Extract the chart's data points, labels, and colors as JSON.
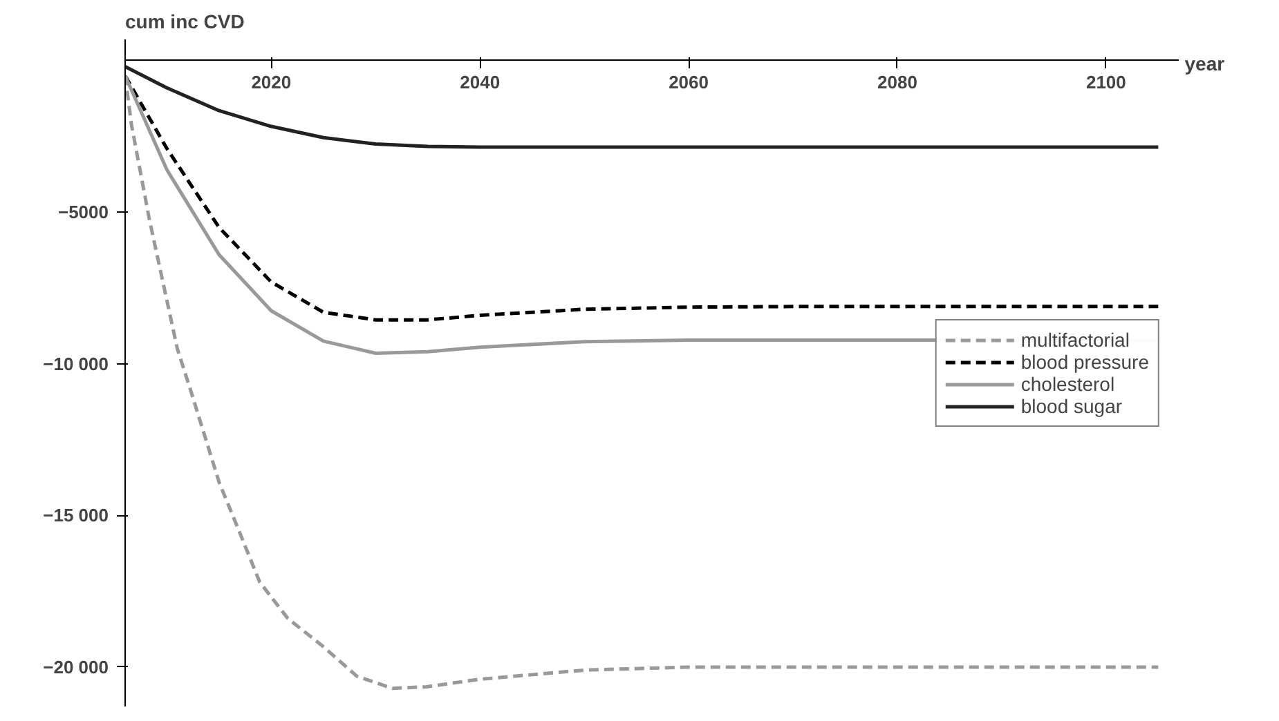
{
  "chart_data": {
    "type": "line",
    "xlabel": "year",
    "ylabel": "cum inc CVD",
    "xlim": [
      2006,
      2107
    ],
    "ylim": [
      -21300,
      700
    ],
    "xticks": [
      2020,
      2040,
      2060,
      2080,
      2100
    ],
    "yticks": [
      {
        "value": -5000,
        "label": "−5000"
      },
      {
        "value": -10000,
        "label": "−10 000"
      },
      {
        "value": -15000,
        "label": "−15 000"
      },
      {
        "value": -20000,
        "label": "−20 000"
      }
    ],
    "grid": false,
    "legend": "right",
    "series": [
      {
        "name": "multifactorial",
        "color": "#999999",
        "line_style": "dashed",
        "x": [
          2006,
          2006.6,
          2008.3,
          2011,
          2012.3,
          2015,
          2016.9,
          2018.9,
          2021.6,
          2024.9,
          2028.2,
          2031.6,
          2034.9,
          2040,
          2050,
          2060,
          2080,
          2105
        ],
        "values": [
          -500,
          -2100,
          -5200,
          -9500,
          -10900,
          -13900,
          -15500,
          -17200,
          -18400,
          -19300,
          -20300,
          -20700,
          -20650,
          -20400,
          -20100,
          -20000,
          -20000,
          -20000
        ]
      },
      {
        "name": "blood pressure",
        "color": "#000000",
        "line_style": "dashed",
        "x": [
          2006,
          2010,
          2015,
          2020,
          2025,
          2030,
          2035,
          2040,
          2050,
          2060,
          2070,
          2080,
          2105
        ],
        "values": [
          -500,
          -2900,
          -5500,
          -7300,
          -8300,
          -8550,
          -8550,
          -8400,
          -8200,
          -8130,
          -8110,
          -8110,
          -8110
        ]
      },
      {
        "name": "cholesterol",
        "color": "#999999",
        "line_style": "solid",
        "x": [
          2006,
          2010,
          2015,
          2020,
          2025,
          2030,
          2035,
          2040,
          2050,
          2060,
          2080,
          2105
        ],
        "values": [
          -500,
          -3600,
          -6400,
          -8250,
          -9250,
          -9650,
          -9600,
          -9450,
          -9270,
          -9220,
          -9220,
          -9220
        ]
      },
      {
        "name": "blood sugar",
        "color": "#222222",
        "line_style": "solid",
        "x": [
          2006,
          2010,
          2015,
          2020,
          2025,
          2030,
          2035,
          2040,
          2060,
          2080,
          2105
        ],
        "values": [
          -200,
          -900,
          -1650,
          -2170,
          -2540,
          -2750,
          -2830,
          -2850,
          -2850,
          -2850,
          -2850
        ]
      }
    ]
  }
}
